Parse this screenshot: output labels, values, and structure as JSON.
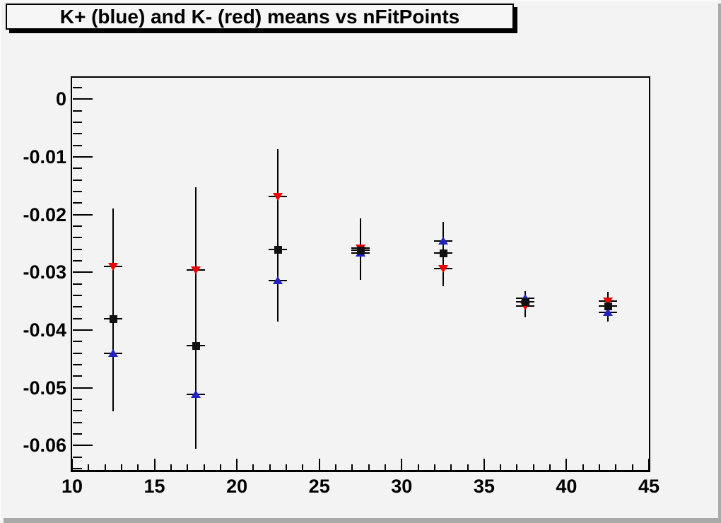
{
  "title": "K+ (blue) and K- (red) means vs nFitPoints",
  "colors": {
    "canvas_bg": "#f2f3f2",
    "pave_bg": "#f6f6f6",
    "pave_shadow": "#000000",
    "axis_color": "#000000",
    "window_edge_dark": "#a9a9a9",
    "window_edge_light": "#fbfbfb",
    "kplus_blue": "#2222c4",
    "kminus_red": "#ee0000",
    "mean_black": "#111111"
  },
  "chart_data": {
    "type": "scatter",
    "title": "K+ (blue) and K- (red) means vs nFitPoints",
    "xlabel": "",
    "ylabel": "",
    "xlim": [
      10,
      45
    ],
    "ylim": [
      -0.0645,
      0.0037
    ],
    "grid": false,
    "legend": "none (colors identified in title)",
    "x_major_ticks": [
      {
        "v": 10,
        "label": "10"
      },
      {
        "v": 15,
        "label": "15"
      },
      {
        "v": 20,
        "label": "20"
      },
      {
        "v": 25,
        "label": "25"
      },
      {
        "v": 30,
        "label": "30"
      },
      {
        "v": 35,
        "label": "35"
      },
      {
        "v": 40,
        "label": "40"
      },
      {
        "v": 45,
        "label": "45"
      }
    ],
    "x_minor_step": 1,
    "y_major_ticks": [
      {
        "v": 0,
        "label": "0"
      },
      {
        "v": -0.01,
        "label": "-0.01"
      },
      {
        "v": -0.02,
        "label": "-0.02"
      },
      {
        "v": -0.03,
        "label": "-0.03"
      },
      {
        "v": -0.04,
        "label": "-0.04"
      },
      {
        "v": -0.05,
        "label": "-0.05"
      },
      {
        "v": -0.06,
        "label": "-0.06"
      }
    ],
    "y_minor_step": 0.002,
    "x": [
      12.5,
      17.5,
      22.5,
      27.5,
      32.5,
      37.5,
      42.5
    ],
    "series": [
      {
        "id": "kplus",
        "name": "K+ (blue)",
        "marker": "triangle-up",
        "color": "#2222c4",
        "values": [
          -0.044,
          -0.0512,
          -0.0315,
          -0.0267,
          -0.0246,
          -0.0345,
          -0.037
        ]
      },
      {
        "id": "kminus",
        "name": "K- (red)",
        "marker": "triangle-down",
        "color": "#ee0000",
        "values": [
          -0.029,
          -0.0296,
          -0.0169,
          -0.0258,
          -0.0293,
          -0.0359,
          -0.035
        ]
      },
      {
        "id": "mean",
        "name": "mean (black)",
        "marker": "square",
        "color": "#111111",
        "values": [
          -0.0381,
          -0.0427,
          -0.0261,
          -0.0262,
          -0.0267,
          -0.0351,
          -0.0359
        ]
      }
    ],
    "error_bars": [
      {
        "x": 12.5,
        "low": -0.0541,
        "high": -0.019
      },
      {
        "x": 17.5,
        "low": -0.0606,
        "high": -0.0153
      },
      {
        "x": 22.5,
        "low": -0.0385,
        "high": -0.0087
      },
      {
        "x": 27.5,
        "low": -0.0313,
        "high": -0.0207
      },
      {
        "x": 32.5,
        "low": -0.0324,
        "high": -0.0213
      },
      {
        "x": 37.5,
        "low": -0.0378,
        "high": -0.0333
      },
      {
        "x": 42.5,
        "low": -0.0386,
        "high": -0.0334
      }
    ],
    "x_error_halfwidth": 0.55
  }
}
